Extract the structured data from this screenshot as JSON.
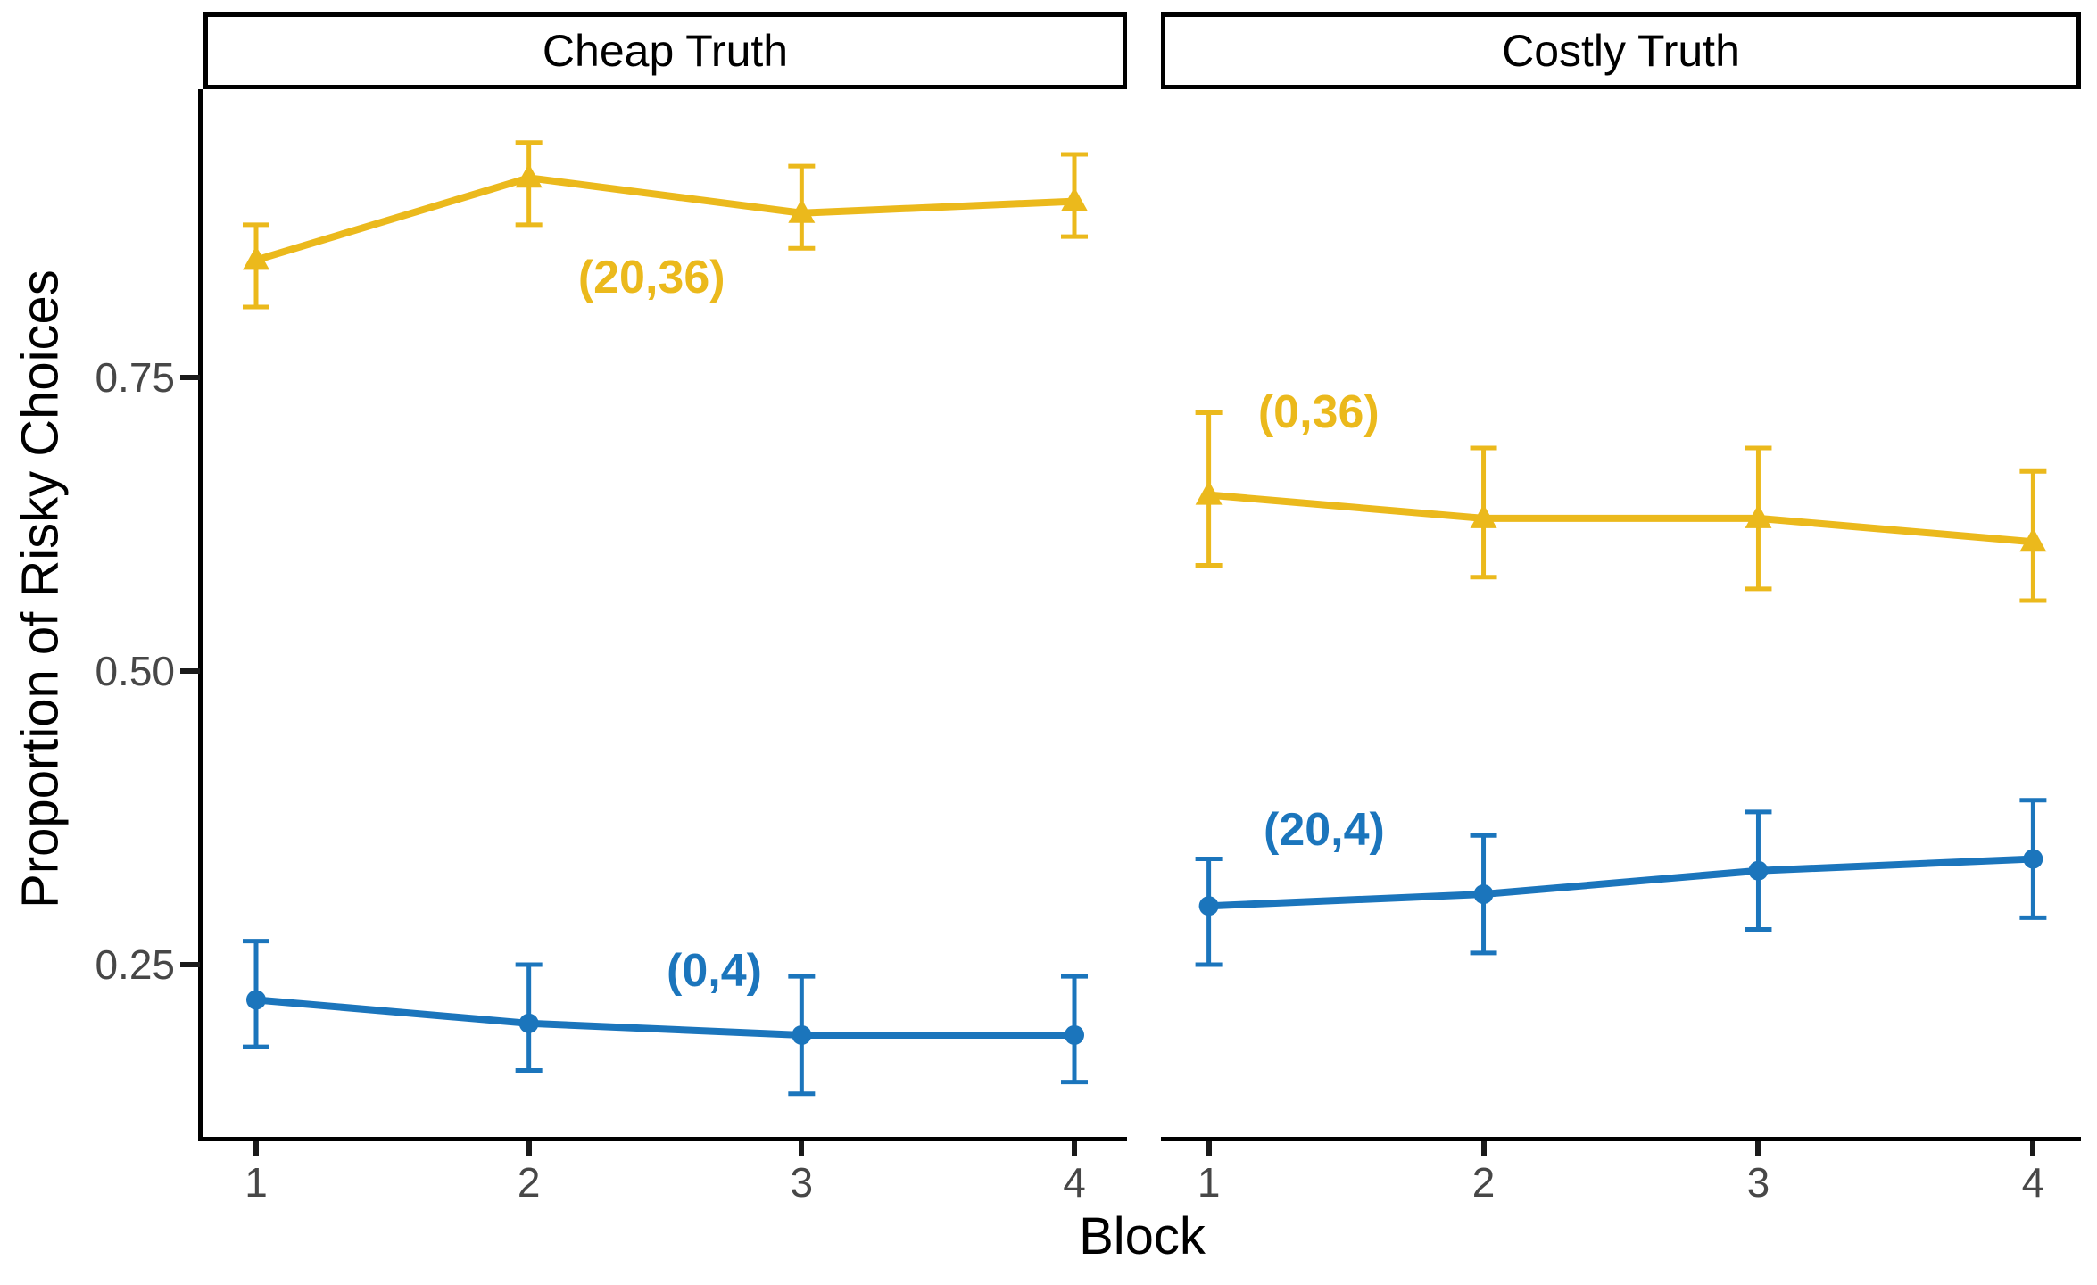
{
  "chart_data": {
    "type": "line",
    "x": [
      1,
      2,
      3,
      4
    ],
    "xlabel": "Block",
    "ylabel": "Proportion of Risky Choices",
    "yticks": [
      0.25,
      0.5,
      0.75
    ],
    "ytick_labels": [
      "0.25",
      "0.50",
      "0.75"
    ],
    "ylim": [
      0.1,
      1.0
    ],
    "grid": false,
    "legend_position": "inline-annotations",
    "error_bars": true,
    "facets": [
      {
        "title": "Cheap Truth",
        "series": [
          {
            "name": "(20,36)",
            "color": "#EBB91C",
            "marker": "triangle",
            "values": [
              0.85,
              0.92,
              0.89,
              0.9
            ],
            "ci_low": [
              0.81,
              0.88,
              0.86,
              0.87
            ],
            "ci_high": [
              0.88,
              0.95,
              0.93,
              0.94
            ],
            "label": {
              "text": "(20,36)",
              "block": 2.45,
              "value": 0.835
            }
          },
          {
            "name": "(0,4)",
            "color": "#1B75BC",
            "marker": "circle",
            "values": [
              0.22,
              0.2,
              0.19,
              0.19
            ],
            "ci_low": [
              0.18,
              0.16,
              0.14,
              0.15
            ],
            "ci_high": [
              0.27,
              0.25,
              0.24,
              0.24
            ],
            "label": {
              "text": "(0,4)",
              "block": 2.68,
              "value": 0.245
            }
          }
        ]
      },
      {
        "title": "Costly Truth",
        "series": [
          {
            "name": "(0,36)",
            "color": "#EBB91C",
            "marker": "triangle",
            "values": [
              0.65,
              0.63,
              0.63,
              0.61
            ],
            "ci_low": [
              0.59,
              0.58,
              0.57,
              0.56
            ],
            "ci_high": [
              0.72,
              0.69,
              0.69,
              0.67
            ],
            "label": {
              "text": "(0,36)",
              "block": 1.4,
              "value": 0.72
            }
          },
          {
            "name": "(20,4)",
            "color": "#1B75BC",
            "marker": "circle",
            "values": [
              0.3,
              0.31,
              0.33,
              0.34
            ],
            "ci_low": [
              0.25,
              0.26,
              0.28,
              0.29
            ],
            "ci_high": [
              0.34,
              0.36,
              0.38,
              0.39
            ],
            "label": {
              "text": "(20,4)",
              "block": 1.42,
              "value": 0.365
            }
          }
        ]
      }
    ]
  },
  "colors": {
    "series_yellow": "#EBB91C",
    "series_blue": "#1B75BC",
    "axis_text": "#474747",
    "axis_line": "#000000",
    "background": "#ffffff"
  }
}
